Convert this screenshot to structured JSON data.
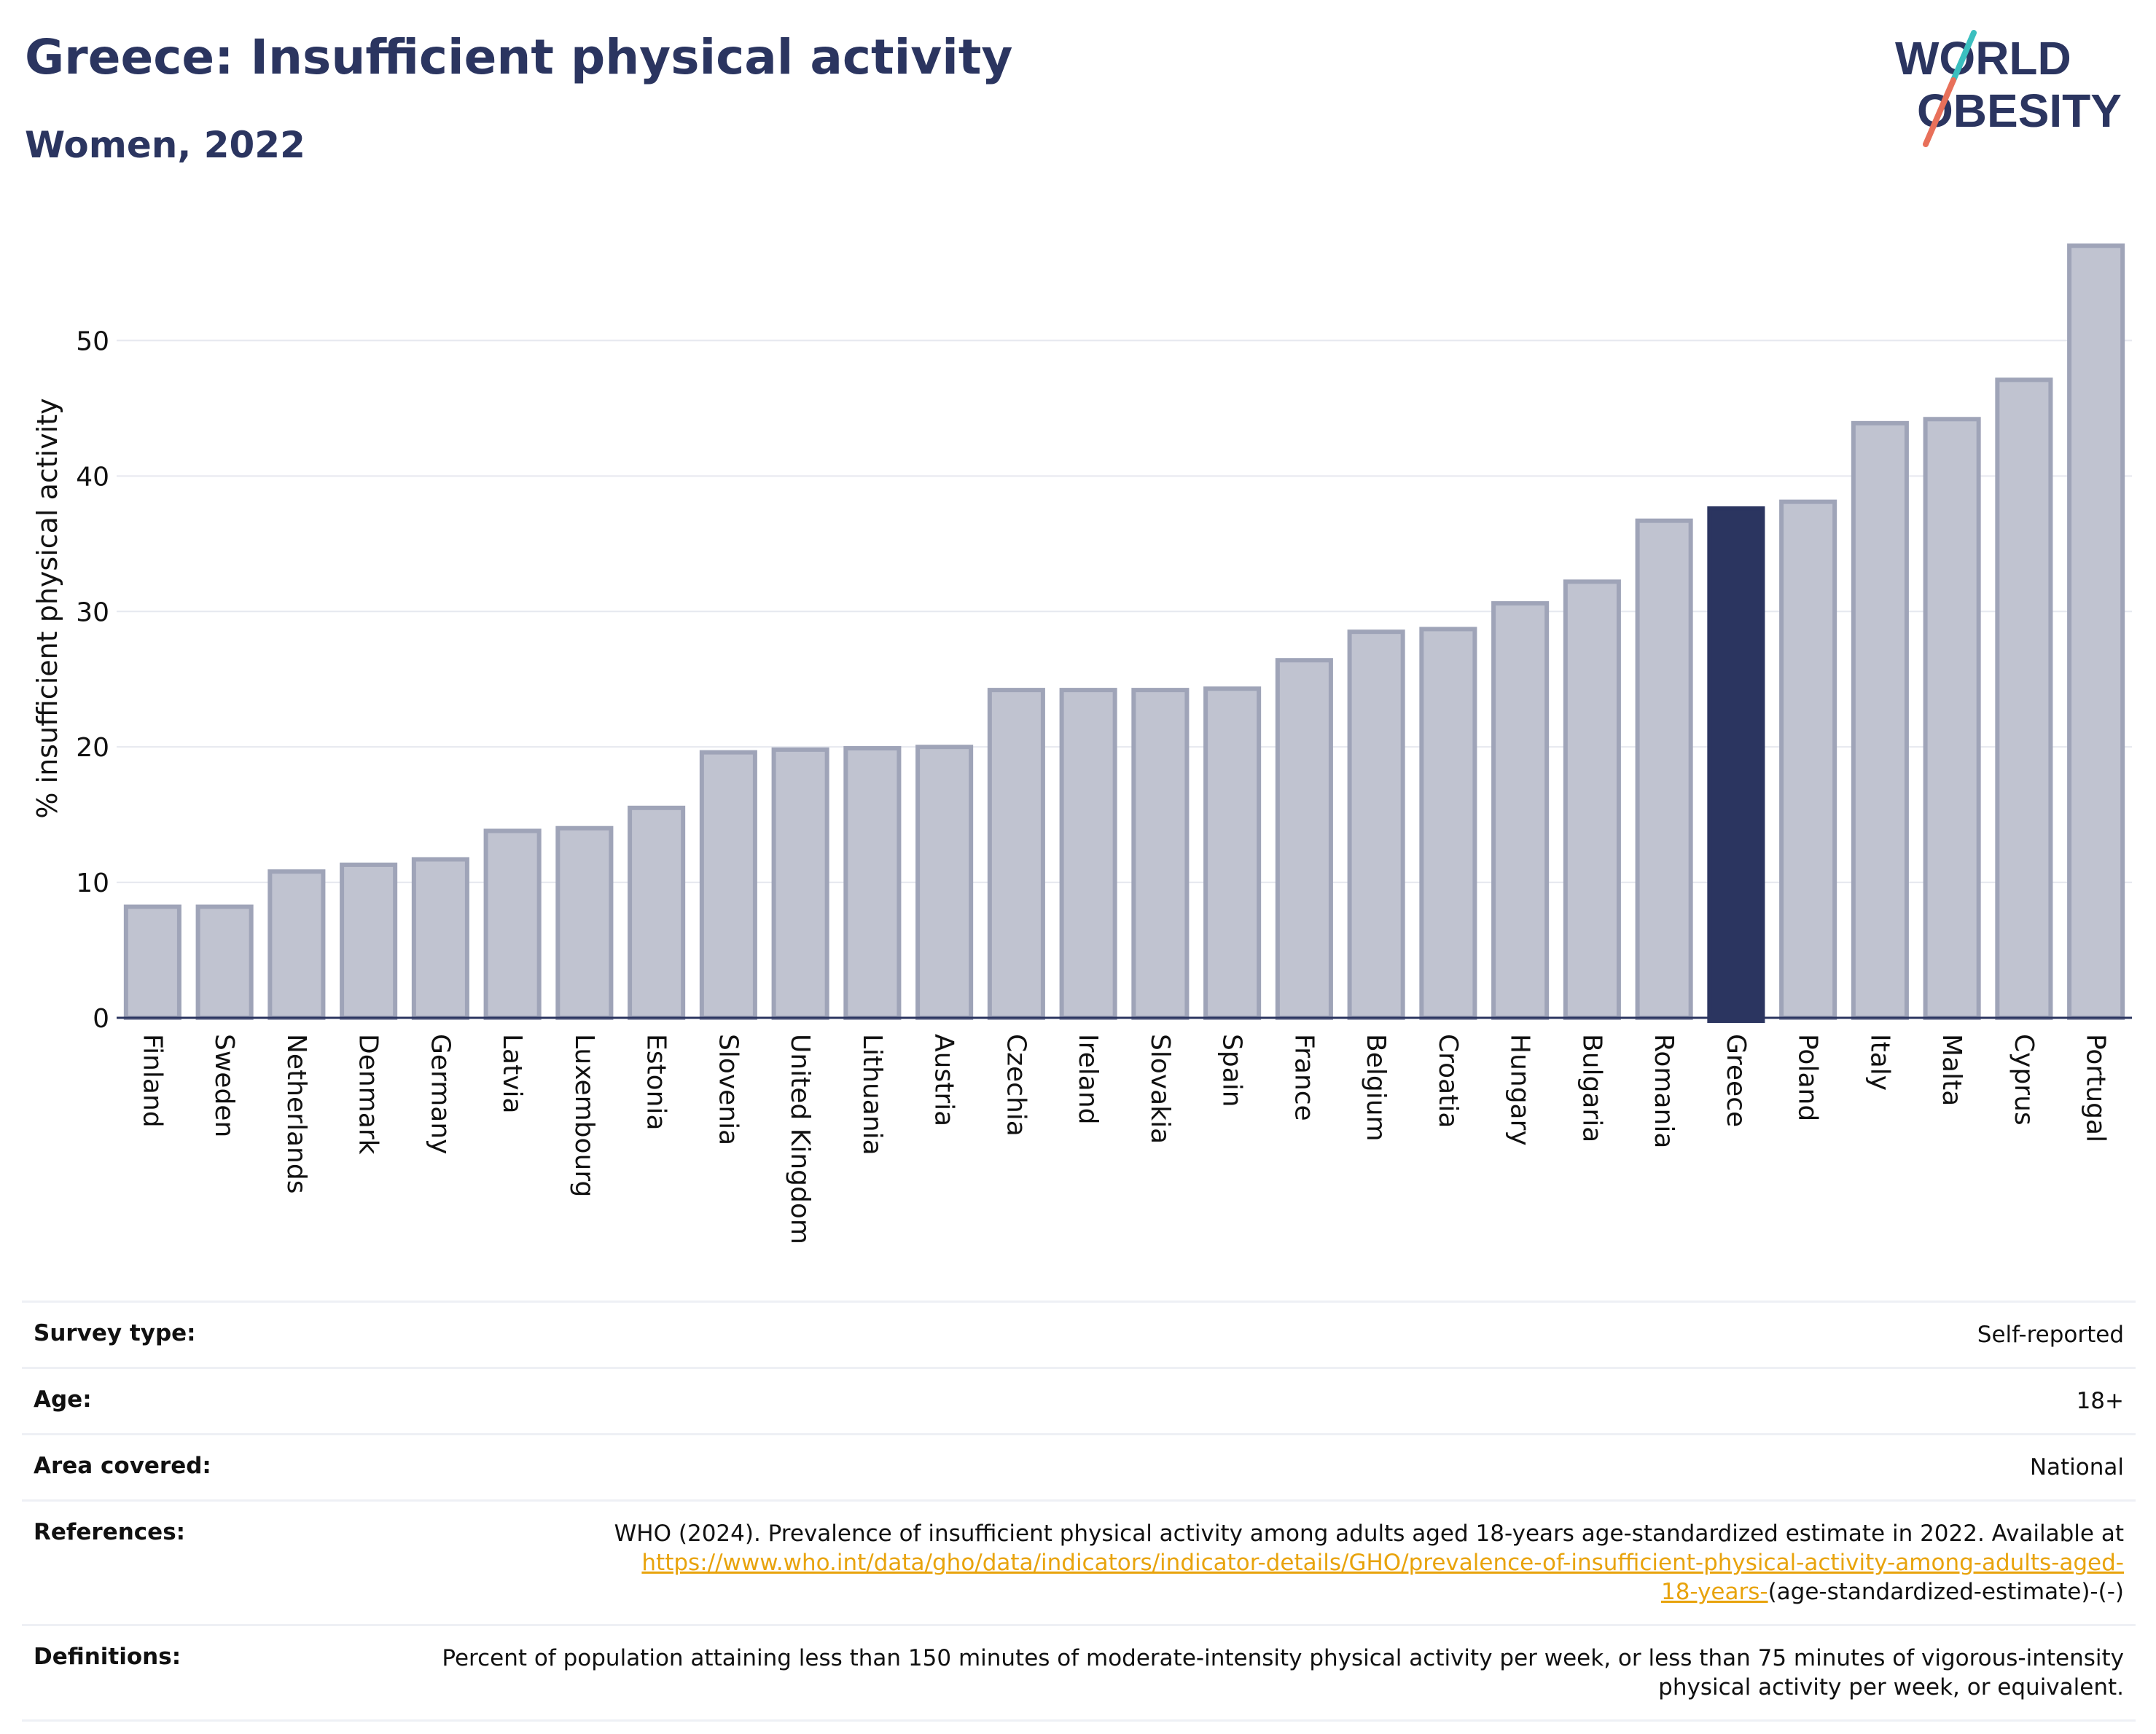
{
  "header": {
    "title": "Greece: Insufficient physical activity",
    "subtitle": "Women, 2022"
  },
  "logo": {
    "line1": "WORLD",
    "line2": "OBESITY"
  },
  "chart_data": {
    "type": "bar",
    "title": "Greece: Insufficient physical activity",
    "subtitle": "Women, 2022",
    "ylabel": "% insufficient physical activity",
    "xlabel": "",
    "ylim": [
      0,
      57.5
    ],
    "yticks": [
      0,
      10,
      20,
      30,
      40,
      50
    ],
    "grid": true,
    "highlight": "Greece",
    "categories": [
      "Finland",
      "Sweden",
      "Netherlands",
      "Denmark",
      "Germany",
      "Latvia",
      "Luxembourg",
      "Estonia",
      "Slovenia",
      "United Kingdom",
      "Lithuania",
      "Austria",
      "Czechia",
      "Ireland",
      "Slovakia",
      "Spain",
      "France",
      "Belgium",
      "Croatia",
      "Hungary",
      "Bulgaria",
      "Romania",
      "Greece",
      "Poland",
      "Italy",
      "Malta",
      "Cyprus",
      "Portugal"
    ],
    "values": [
      8.2,
      8.2,
      10.8,
      11.3,
      11.7,
      13.8,
      14.0,
      15.5,
      19.6,
      19.8,
      19.9,
      20.0,
      24.2,
      24.2,
      24.2,
      24.3,
      26.4,
      28.5,
      28.7,
      30.6,
      32.2,
      36.7,
      37.6,
      38.1,
      43.9,
      44.2,
      47.1,
      57.0
    ]
  },
  "colors": {
    "title": "#2b3560",
    "bar_default": "#c0c3d0",
    "bar_border": "#9fa4b8",
    "bar_highlight": "#2b3560",
    "link": "#e8a30c",
    "logo_teal": "#3bbfbf",
    "logo_coral": "#e8705a"
  },
  "metadata": {
    "survey_type_label": "Survey type:",
    "survey_type_value": "Self-reported",
    "age_label": "Age:",
    "age_value": "18+",
    "area_label": "Area covered:",
    "area_value": "National",
    "references_label": "References:",
    "references_text": "WHO (2024). Prevalence of insufficient physical activity among adults aged 18-years age-standardized estimate in 2022. Available at",
    "references_link_line1": "https://www.who.int/data/gho/data/indicators/indicator-details/GHO/prevalence-of-insufficient-physical-activity-among-adults-aged-",
    "references_link_line2": "18-years-",
    "references_suffix": "(age-standardized-estimate)-(-)",
    "definitions_label": "Definitions:",
    "definitions_text": "Percent of population attaining less than 150 minutes of moderate-intensity physical activity per week, or less than 75 minutes of vigorous-intensity physical activity per week, or equivalent."
  }
}
